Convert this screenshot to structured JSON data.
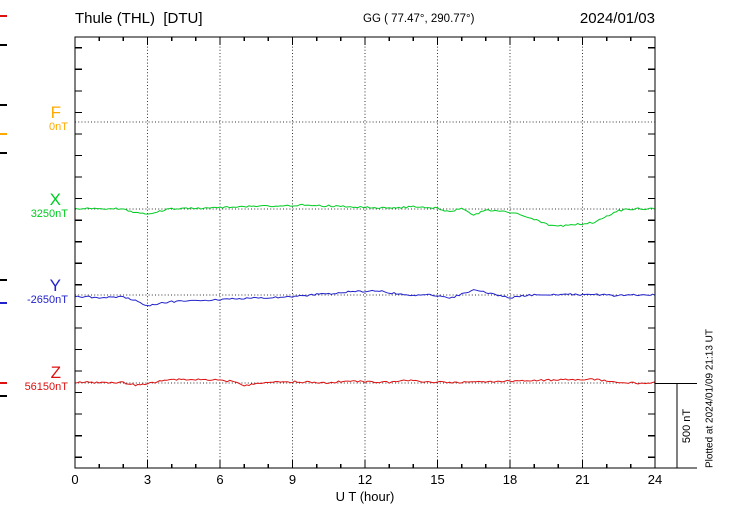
{
  "header": {
    "station": "Thule (THL)  [DTU]",
    "coords": "GG ( 77.47°, 290.77°)",
    "date": "2024/01/03"
  },
  "footer_rotated": "Plotted at 2024/01/09 21:13 UT",
  "chart_data": {
    "type": "line",
    "title": "Magnetogram Thule (THL) [DTU] 2024/01/03",
    "xlabel": "U T (hour)",
    "xlim": [
      0,
      24
    ],
    "x_ticks": [
      0,
      3,
      6,
      9,
      12,
      15,
      18,
      21,
      24
    ],
    "x_minor_step_hours": 1,
    "x_step_hours": 0.5,
    "grid": "dotted vertical gridlines every 3 h; dotted horizontal baseline per component",
    "legend_position": "left margin, one colored label per component",
    "scale_bar": {
      "label": "500 nT",
      "nT": 500
    },
    "series": [
      {
        "name": "F",
        "color": "#FFAA00",
        "baseline_label": "0nT",
        "baseline_nT": 0,
        "values_offset_nT": []
      },
      {
        "name": "X",
        "color": "#00CC22",
        "baseline_label": "3250nT",
        "baseline_nT": 3250,
        "values_offset_nT": [
          0,
          4,
          0,
          5,
          0,
          -22,
          -30,
          -12,
          0,
          4,
          2,
          5,
          10,
          12,
          16,
          18,
          18,
          20,
          22,
          25,
          20,
          18,
          17,
          6,
          12,
          8,
          10,
          8,
          16,
          5,
          5,
          -18,
          5,
          -35,
          -5,
          -10,
          -18,
          -35,
          -60,
          -90,
          -102,
          -95,
          -88,
          -78,
          -42,
          -10,
          0,
          2,
          0
        ]
      },
      {
        "name": "Y",
        "color": "#2222CC",
        "baseline_label": "-2650nT",
        "baseline_nT": -2650,
        "values_offset_nT": [
          -12,
          -12,
          -15,
          -12,
          -13,
          -30,
          -65,
          -48,
          -40,
          -36,
          -33,
          -30,
          -27,
          -24,
          -21,
          -18,
          -15,
          -12,
          -9,
          -3,
          3,
          6,
          12,
          21,
          18,
          27,
          12,
          6,
          0,
          2,
          -5,
          -20,
          4,
          28,
          16,
          0,
          -16,
          -6,
          0,
          4,
          0,
          4,
          0,
          3,
          0,
          -4,
          2,
          0,
          2
        ]
      },
      {
        "name": "Z",
        "color": "#DD1111",
        "baseline_label": "56150nT",
        "baseline_nT": 56150,
        "values_offset_nT": [
          0,
          5,
          2,
          4,
          2,
          -12,
          -5,
          10,
          20,
          22,
          20,
          18,
          16,
          10,
          -18,
          -5,
          5,
          6,
          7,
          6,
          5,
          0,
          10,
          15,
          6,
          5,
          4,
          12,
          16,
          6,
          5,
          4,
          5,
          12,
          6,
          10,
          12,
          15,
          16,
          17,
          18,
          22,
          18,
          22,
          12,
          6,
          2,
          -4,
          4
        ]
      }
    ]
  }
}
